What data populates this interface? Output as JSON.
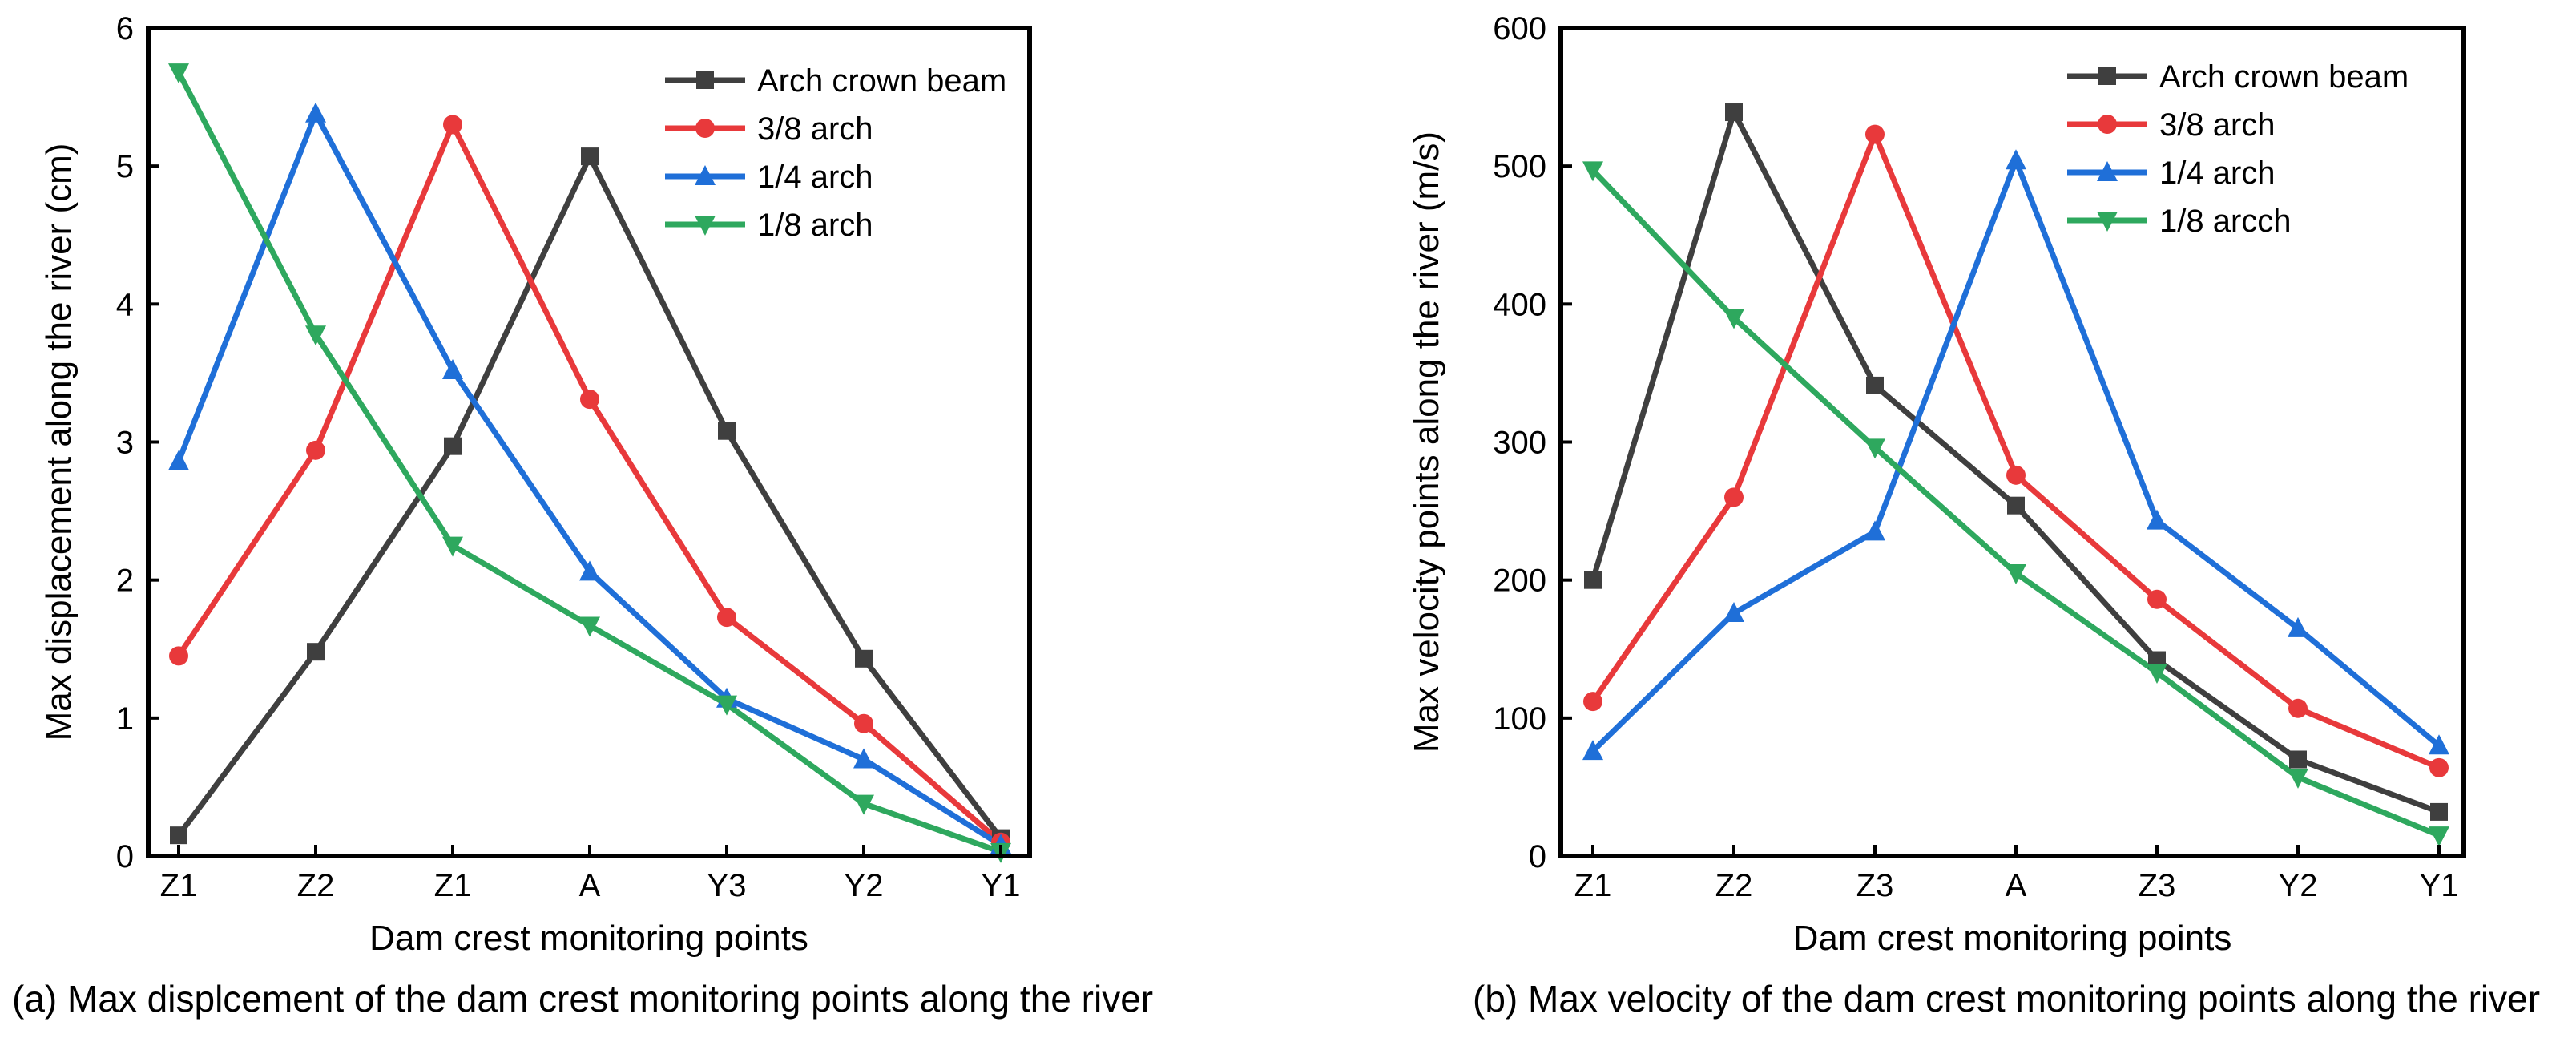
{
  "chart_data": [
    {
      "type": "line",
      "caption": "(a) Max displcement of the dam crest monitoring points along the river",
      "title": "",
      "xlabel": "Dam crest monitoring points",
      "ylabel": "Max displacement along the river (cm)",
      "categories": [
        "Z1",
        "Z2",
        "Z1",
        "A",
        "Y3",
        "Y2",
        "Y1"
      ],
      "ylim": [
        0,
        6
      ],
      "yticks": [
        0,
        1,
        2,
        3,
        4,
        5,
        6
      ],
      "grid": false,
      "legend_position": "top-right",
      "series": [
        {
          "name": "Arch crown beam",
          "color": "#3f3f3f",
          "marker": "square",
          "x": [
            0,
            1,
            2,
            3,
            4,
            5,
            6
          ],
          "values": [
            0.15,
            1.48,
            2.97,
            5.07,
            3.08,
            1.43,
            0.13
          ]
        },
        {
          "name": "3/8 arch",
          "color": "#e8393b",
          "marker": "circle",
          "x": [
            0,
            1,
            2,
            3,
            4,
            5,
            6
          ],
          "values": [
            1.45,
            2.94,
            5.3,
            3.31,
            1.73,
            0.96,
            0.1
          ]
        },
        {
          "name": "1/4 arch",
          "color": "#1f6fd8",
          "marker": "triangle-up",
          "x": [
            0,
            1,
            2,
            3,
            4,
            5,
            6
          ],
          "values": [
            2.86,
            5.38,
            3.52,
            2.06,
            1.14,
            0.7,
            0.08
          ]
        },
        {
          "name": "1/8 arch",
          "color": "#2ea85e",
          "marker": "triangle-down",
          "x": [
            0,
            1,
            2,
            3,
            4,
            5,
            6
          ],
          "values": [
            5.68,
            3.78,
            2.25,
            1.67,
            1.1,
            0.38,
            0.03
          ]
        }
      ]
    },
    {
      "type": "line",
      "caption": "(b) Max velocity of the dam crest monitoring points along the river",
      "title": "",
      "xlabel": "Dam crest monitoring points",
      "ylabel": "Max velocity points along the river (m/s)",
      "categories": [
        "Z1",
        "Z2",
        "Z3",
        "A",
        "Z3",
        "Y2",
        "Y1"
      ],
      "ylim": [
        0,
        600
      ],
      "yticks": [
        0,
        100,
        200,
        300,
        400,
        500,
        600
      ],
      "grid": false,
      "legend_position": "top-right",
      "series": [
        {
          "name": "Arch crown beam",
          "color": "#3f3f3f",
          "marker": "square",
          "x": [
            0,
            1,
            2,
            3,
            4,
            5,
            6
          ],
          "values": [
            200,
            539,
            341,
            254,
            142,
            70,
            32
          ]
        },
        {
          "name": "3/8 arch",
          "color": "#e8393b",
          "marker": "circle",
          "x": [
            0,
            1,
            2,
            3,
            4,
            5,
            6
          ],
          "values": [
            112,
            260,
            523,
            276,
            186,
            107,
            64
          ]
        },
        {
          "name": "1/4 arch",
          "color": "#1f6fd8",
          "marker": "triangle-up",
          "x": [
            0,
            1,
            2,
            3,
            4,
            5,
            6
          ],
          "values": [
            76,
            176,
            235,
            504,
            243,
            165,
            80
          ]
        },
        {
          "name": "1/8 arcch",
          "color": "#2ea85e",
          "marker": "triangle-down",
          "x": [
            0,
            1,
            2,
            3,
            4,
            5,
            6
          ],
          "values": [
            497,
            390,
            296,
            205,
            133,
            57,
            15
          ]
        }
      ]
    }
  ]
}
